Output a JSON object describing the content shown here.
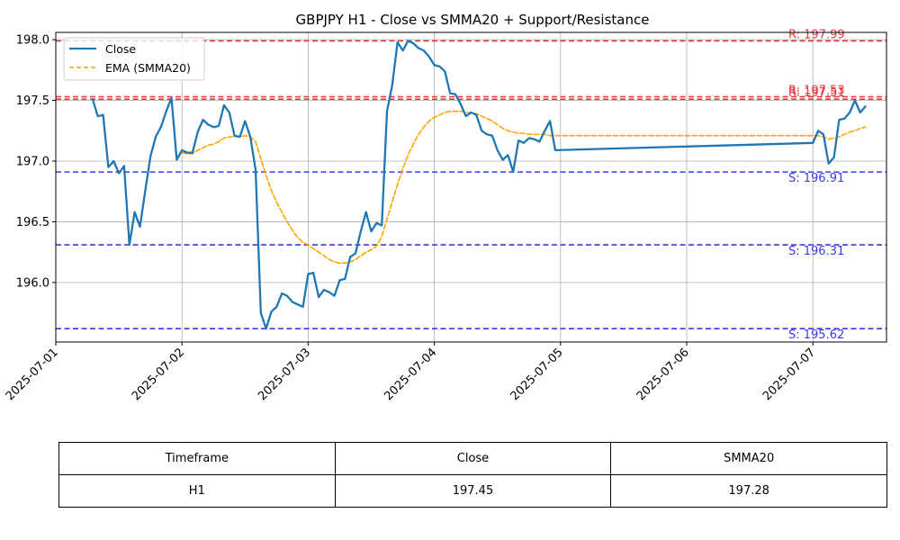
{
  "chart_data": {
    "type": "line",
    "title": "GBPJPY H1 - Close vs SMMA20 + Support/Resistance",
    "xlabel": "",
    "ylabel": "",
    "xlim": [
      "2025-07-01 00:00",
      "2025-07-07 14:00"
    ],
    "ylim": [
      195.51,
      198.06
    ],
    "grid": true,
    "legend_position": "top-left",
    "x_ticks": [
      "2025-07-01",
      "2025-07-02",
      "2025-07-03",
      "2025-07-04",
      "2025-07-05",
      "2025-07-06",
      "2025-07-07"
    ],
    "y_ticks": [
      "196.0",
      "196.5",
      "197.0",
      "197.5",
      "198.0"
    ],
    "y_tick_values": [
      196.0,
      196.5,
      197.0,
      197.5,
      198.0
    ],
    "series": [
      {
        "name": "Close",
        "color": "#1f77b4",
        "style": "solid",
        "points": [
          [
            "2025-07-01 07:00",
            197.51
          ],
          [
            "2025-07-01 08:00",
            197.37
          ],
          [
            "2025-07-01 09:00",
            197.38
          ],
          [
            "2025-07-01 10:00",
            196.95
          ],
          [
            "2025-07-01 11:00",
            197.0
          ],
          [
            "2025-07-01 12:00",
            196.9
          ],
          [
            "2025-07-01 13:00",
            196.96
          ],
          [
            "2025-07-01 14:00",
            196.31
          ],
          [
            "2025-07-01 15:00",
            196.58
          ],
          [
            "2025-07-01 16:00",
            196.46
          ],
          [
            "2025-07-01 17:00",
            196.75
          ],
          [
            "2025-07-01 18:00",
            197.04
          ],
          [
            "2025-07-01 19:00",
            197.2
          ],
          [
            "2025-07-01 20:00",
            197.28
          ],
          [
            "2025-07-01 21:00",
            197.41
          ],
          [
            "2025-07-01 22:00",
            197.52
          ],
          [
            "2025-07-01 23:00",
            197.01
          ],
          [
            "2025-07-02 00:00",
            197.09
          ],
          [
            "2025-07-02 01:00",
            197.07
          ],
          [
            "2025-07-02 02:00",
            197.07
          ],
          [
            "2025-07-02 03:00",
            197.24
          ],
          [
            "2025-07-02 04:00",
            197.34
          ],
          [
            "2025-07-02 05:00",
            197.3
          ],
          [
            "2025-07-02 06:00",
            197.28
          ],
          [
            "2025-07-02 07:00",
            197.29
          ],
          [
            "2025-07-02 08:00",
            197.46
          ],
          [
            "2025-07-02 09:00",
            197.4
          ],
          [
            "2025-07-02 10:00",
            197.21
          ],
          [
            "2025-07-02 11:00",
            197.2
          ],
          [
            "2025-07-02 12:00",
            197.33
          ],
          [
            "2025-07-02 13:00",
            197.2
          ],
          [
            "2025-07-02 14:00",
            196.93
          ],
          [
            "2025-07-02 15:00",
            195.75
          ],
          [
            "2025-07-02 16:00",
            195.62
          ],
          [
            "2025-07-02 17:00",
            195.76
          ],
          [
            "2025-07-02 18:00",
            195.8
          ],
          [
            "2025-07-02 19:00",
            195.91
          ],
          [
            "2025-07-02 20:00",
            195.89
          ],
          [
            "2025-07-02 21:00",
            195.84
          ],
          [
            "2025-07-02 22:00",
            195.82
          ],
          [
            "2025-07-02 23:00",
            195.8
          ],
          [
            "2025-07-03 00:00",
            196.07
          ],
          [
            "2025-07-03 01:00",
            196.08
          ],
          [
            "2025-07-03 02:00",
            195.88
          ],
          [
            "2025-07-03 03:00",
            195.94
          ],
          [
            "2025-07-03 04:00",
            195.92
          ],
          [
            "2025-07-03 05:00",
            195.89
          ],
          [
            "2025-07-03 06:00",
            196.02
          ],
          [
            "2025-07-03 07:00",
            196.03
          ],
          [
            "2025-07-03 08:00",
            196.21
          ],
          [
            "2025-07-03 09:00",
            196.24
          ],
          [
            "2025-07-03 10:00",
            196.42
          ],
          [
            "2025-07-03 11:00",
            196.58
          ],
          [
            "2025-07-03 12:00",
            196.42
          ],
          [
            "2025-07-03 13:00",
            196.49
          ],
          [
            "2025-07-03 14:00",
            196.47
          ],
          [
            "2025-07-03 15:00",
            197.41
          ],
          [
            "2025-07-03 16:00",
            197.63
          ],
          [
            "2025-07-03 17:00",
            197.98
          ],
          [
            "2025-07-03 18:00",
            197.91
          ],
          [
            "2025-07-03 19:00",
            197.99
          ],
          [
            "2025-07-03 20:00",
            197.97
          ],
          [
            "2025-07-03 21:00",
            197.93
          ],
          [
            "2025-07-03 22:00",
            197.91
          ],
          [
            "2025-07-03 23:00",
            197.86
          ],
          [
            "2025-07-04 00:00",
            197.79
          ],
          [
            "2025-07-04 01:00",
            197.78
          ],
          [
            "2025-07-04 02:00",
            197.74
          ],
          [
            "2025-07-04 03:00",
            197.56
          ],
          [
            "2025-07-04 04:00",
            197.55
          ],
          [
            "2025-07-04 05:00",
            197.47
          ],
          [
            "2025-07-04 06:00",
            197.37
          ],
          [
            "2025-07-04 07:00",
            197.4
          ],
          [
            "2025-07-04 08:00",
            197.38
          ],
          [
            "2025-07-04 09:00",
            197.25
          ],
          [
            "2025-07-04 10:00",
            197.22
          ],
          [
            "2025-07-04 11:00",
            197.21
          ],
          [
            "2025-07-04 12:00",
            197.09
          ],
          [
            "2025-07-04 13:00",
            197.01
          ],
          [
            "2025-07-04 14:00",
            197.05
          ],
          [
            "2025-07-04 15:00",
            196.91
          ],
          [
            "2025-07-04 16:00",
            197.17
          ],
          [
            "2025-07-04 17:00",
            197.15
          ],
          [
            "2025-07-04 18:00",
            197.19
          ],
          [
            "2025-07-04 19:00",
            197.18
          ],
          [
            "2025-07-04 20:00",
            197.16
          ],
          [
            "2025-07-04 21:00",
            197.25
          ],
          [
            "2025-07-04 22:00",
            197.33
          ],
          [
            "2025-07-04 23:00",
            197.09
          ],
          [
            "2025-07-07 00:00",
            197.15
          ],
          [
            "2025-07-07 01:00",
            197.25
          ],
          [
            "2025-07-07 02:00",
            197.22
          ],
          [
            "2025-07-07 03:00",
            196.98
          ],
          [
            "2025-07-07 04:00",
            197.03
          ],
          [
            "2025-07-07 05:00",
            197.34
          ],
          [
            "2025-07-07 06:00",
            197.35
          ],
          [
            "2025-07-07 07:00",
            197.4
          ],
          [
            "2025-07-07 08:00",
            197.5
          ],
          [
            "2025-07-07 09:00",
            197.4
          ],
          [
            "2025-07-07 10:00",
            197.45
          ]
        ]
      },
      {
        "name": "EMA (SMMA20)",
        "color": "#ffa500",
        "style": "dashed",
        "points": [
          [
            "2025-07-02 00:00",
            197.07
          ],
          [
            "2025-07-02 01:00",
            197.06
          ],
          [
            "2025-07-02 02:00",
            197.06
          ],
          [
            "2025-07-02 03:00",
            197.09
          ],
          [
            "2025-07-02 04:00",
            197.11
          ],
          [
            "2025-07-02 05:00",
            197.13
          ],
          [
            "2025-07-02 06:00",
            197.14
          ],
          [
            "2025-07-02 07:00",
            197.16
          ],
          [
            "2025-07-02 08:00",
            197.19
          ],
          [
            "2025-07-02 09:00",
            197.2
          ],
          [
            "2025-07-02 10:00",
            197.2
          ],
          [
            "2025-07-02 11:00",
            197.2
          ],
          [
            "2025-07-02 12:00",
            197.21
          ],
          [
            "2025-07-02 13:00",
            197.2
          ],
          [
            "2025-07-02 14:00",
            197.16
          ],
          [
            "2025-07-02 15:00",
            197.02
          ],
          [
            "2025-07-02 16:00",
            196.88
          ],
          [
            "2025-07-02 17:00",
            196.76
          ],
          [
            "2025-07-02 18:00",
            196.66
          ],
          [
            "2025-07-02 19:00",
            196.58
          ],
          [
            "2025-07-02 20:00",
            196.5
          ],
          [
            "2025-07-02 21:00",
            196.43
          ],
          [
            "2025-07-02 22:00",
            196.37
          ],
          [
            "2025-07-02 23:00",
            196.33
          ],
          [
            "2025-07-03 00:00",
            196.31
          ],
          [
            "2025-07-03 01:00",
            196.28
          ],
          [
            "2025-07-03 02:00",
            196.25
          ],
          [
            "2025-07-03 03:00",
            196.22
          ],
          [
            "2025-07-03 04:00",
            196.19
          ],
          [
            "2025-07-03 05:00",
            196.17
          ],
          [
            "2025-07-03 06:00",
            196.16
          ],
          [
            "2025-07-03 07:00",
            196.16
          ],
          [
            "2025-07-03 08:00",
            196.17
          ],
          [
            "2025-07-03 09:00",
            196.19
          ],
          [
            "2025-07-03 10:00",
            196.22
          ],
          [
            "2025-07-03 11:00",
            196.25
          ],
          [
            "2025-07-03 12:00",
            196.27
          ],
          [
            "2025-07-03 13:00",
            196.3
          ],
          [
            "2025-07-03 14:00",
            196.38
          ],
          [
            "2025-07-03 15:00",
            196.52
          ],
          [
            "2025-07-03 16:00",
            196.67
          ],
          [
            "2025-07-03 17:00",
            196.81
          ],
          [
            "2025-07-03 18:00",
            196.94
          ],
          [
            "2025-07-03 19:00",
            197.05
          ],
          [
            "2025-07-03 20:00",
            197.14
          ],
          [
            "2025-07-03 21:00",
            197.22
          ],
          [
            "2025-07-03 22:00",
            197.28
          ],
          [
            "2025-07-03 23:00",
            197.33
          ],
          [
            "2025-07-04 00:00",
            197.36
          ],
          [
            "2025-07-04 01:00",
            197.38
          ],
          [
            "2025-07-04 02:00",
            197.4
          ],
          [
            "2025-07-04 03:00",
            197.41
          ],
          [
            "2025-07-04 04:00",
            197.41
          ],
          [
            "2025-07-04 05:00",
            197.41
          ],
          [
            "2025-07-04 06:00",
            197.4
          ],
          [
            "2025-07-04 07:00",
            197.4
          ],
          [
            "2025-07-04 08:00",
            197.39
          ],
          [
            "2025-07-04 09:00",
            197.37
          ],
          [
            "2025-07-04 10:00",
            197.35
          ],
          [
            "2025-07-04 11:00",
            197.33
          ],
          [
            "2025-07-04 12:00",
            197.3
          ],
          [
            "2025-07-04 13:00",
            197.27
          ],
          [
            "2025-07-04 14:00",
            197.25
          ],
          [
            "2025-07-04 15:00",
            197.24
          ],
          [
            "2025-07-04 16:00",
            197.23
          ],
          [
            "2025-07-04 17:00",
            197.23
          ],
          [
            "2025-07-04 18:00",
            197.22
          ],
          [
            "2025-07-04 19:00",
            197.22
          ],
          [
            "2025-07-04 20:00",
            197.22
          ],
          [
            "2025-07-04 21:00",
            197.22
          ],
          [
            "2025-07-04 22:00",
            197.21
          ],
          [
            "2025-07-04 23:00",
            197.21
          ],
          [
            "2025-07-07 00:00",
            197.21
          ],
          [
            "2025-07-07 01:00",
            197.21
          ],
          [
            "2025-07-07 02:00",
            197.2
          ],
          [
            "2025-07-07 03:00",
            197.18
          ],
          [
            "2025-07-07 04:00",
            197.19
          ],
          [
            "2025-07-07 05:00",
            197.2
          ],
          [
            "2025-07-07 06:00",
            197.22
          ],
          [
            "2025-07-07 07:00",
            197.24
          ],
          [
            "2025-07-07 08:00",
            197.25
          ],
          [
            "2025-07-07 09:00",
            197.27
          ],
          [
            "2025-07-07 10:00",
            197.28
          ]
        ]
      }
    ],
    "resistance_levels": [
      {
        "value": 197.99,
        "label": "R: 197.99"
      },
      {
        "value": 197.53,
        "label": "R: 197.53"
      },
      {
        "value": 197.51,
        "label": "R: 197.51"
      }
    ],
    "support_levels": [
      {
        "value": 196.91,
        "label": "S: 196.91"
      },
      {
        "value": 196.31,
        "label": "S: 196.31"
      },
      {
        "value": 195.62,
        "label": "S: 195.62"
      }
    ],
    "colors": {
      "resistance": "#e8383c",
      "support": "#3a3ae8",
      "grid": "#b0b0b0",
      "axes": "#000000"
    }
  },
  "table": {
    "headers": [
      "Timeframe",
      "Close",
      "SMMA20"
    ],
    "rows": [
      [
        "H1",
        "197.45",
        "197.28"
      ]
    ]
  }
}
